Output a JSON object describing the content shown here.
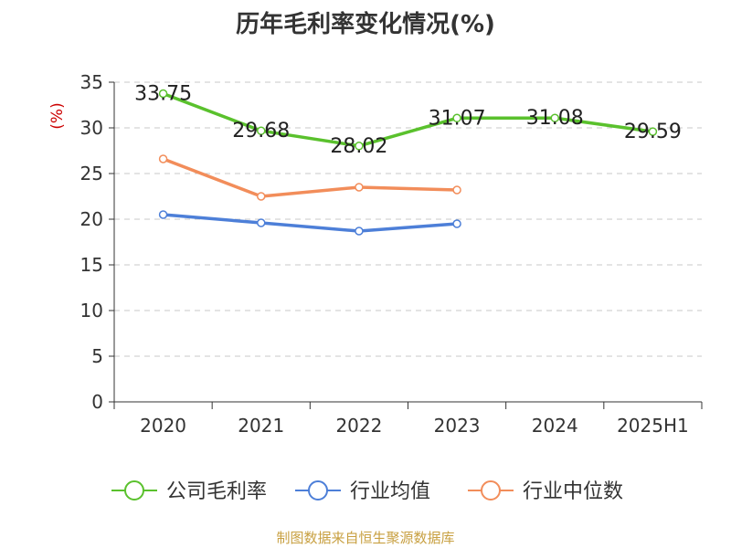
{
  "chart_data": {
    "type": "line",
    "title": "历年毛利率变化情况(%)",
    "ylabel": "(%)",
    "xlabel": "",
    "categories": [
      "2020",
      "2021",
      "2022",
      "2023",
      "2024",
      "2025H1"
    ],
    "ylim": [
      0,
      35
    ],
    "yticks": [
      0,
      5,
      10,
      15,
      20,
      25,
      30,
      35
    ],
    "grid": true,
    "legend_position": "bottom",
    "series": [
      {
        "name": "公司毛利率",
        "color": "#5ac12d",
        "values": [
          33.75,
          29.68,
          28.02,
          31.07,
          31.08,
          29.59
        ],
        "labels": [
          "33.75",
          "29.68",
          "28.02",
          "31.07",
          "31.08",
          "29.59"
        ]
      },
      {
        "name": "行业均值",
        "color": "#4d7fd8",
        "values": [
          20.5,
          19.6,
          18.7,
          19.5,
          null,
          null
        ]
      },
      {
        "name": "行业中位数",
        "color": "#f28d5a",
        "values": [
          26.6,
          22.5,
          23.5,
          23.2,
          null,
          null
        ]
      }
    ]
  },
  "footer": {
    "source": "制图数据来自恒生聚源数据库"
  }
}
